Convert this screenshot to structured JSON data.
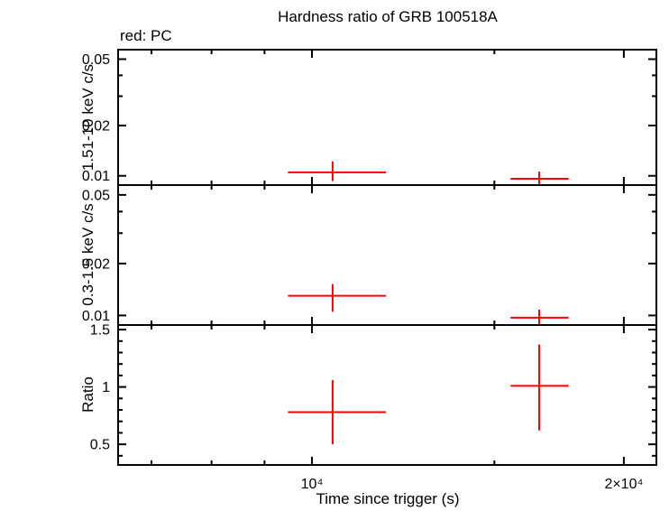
{
  "chart_data": {
    "type": "scatter",
    "title": "Hardness ratio of GRB 100518A",
    "annotation": "red: PC",
    "xlabel": "Time since trigger (s)",
    "series_color": "#ff0000",
    "axis_color": "#000000",
    "legend_position": "top-left",
    "grid": false,
    "xaxis": {
      "scale": "log",
      "lim": [
        6500,
        21500
      ],
      "major_ticks": [
        {
          "value": 10000,
          "label": "10⁴"
        },
        {
          "value": 20000,
          "label": "2×10⁴"
        }
      ],
      "minor_ticks": [
        7000,
        8000,
        9000,
        15000
      ]
    },
    "panels": [
      {
        "name": "hard-band",
        "ylabel": "1.51-10 keV c/s",
        "yscale": "log",
        "ylim": [
          0.0088,
          0.057
        ],
        "major_ticks": [
          {
            "value": 0.05,
            "label": "0.05"
          },
          {
            "value": 0.02,
            "label": "0.02"
          },
          {
            "value": 0.01,
            "label": "0.01"
          }
        ],
        "minor_ticks": [
          0.03,
          0.04
        ],
        "points": [
          {
            "x": 10470,
            "xlo": 9480,
            "xhi": 11790,
            "y": 0.0105,
            "ylo": 0.0093,
            "yhi": 0.0122
          },
          {
            "x": 16570,
            "xlo": 15550,
            "xhi": 17690,
            "y": 0.0096,
            "ylo": 0.0087,
            "yhi": 0.0106
          }
        ]
      },
      {
        "name": "soft-band",
        "ylabel": "0.3-1.5 keV c/s",
        "yscale": "log",
        "ylim": [
          0.0088,
          0.057
        ],
        "major_ticks": [
          {
            "value": 0.05,
            "label": "0.05"
          },
          {
            "value": 0.02,
            "label": "0.02"
          },
          {
            "value": 0.01,
            "label": "0.01"
          }
        ],
        "minor_ticks": [
          0.03,
          0.04
        ],
        "points": [
          {
            "x": 10470,
            "xlo": 9480,
            "xhi": 11790,
            "y": 0.013,
            "ylo": 0.0105,
            "yhi": 0.0152
          },
          {
            "x": 16570,
            "xlo": 15550,
            "xhi": 17690,
            "y": 0.0097,
            "ylo": 0.0085,
            "yhi": 0.0108
          }
        ]
      },
      {
        "name": "ratio",
        "ylabel": "Ratio",
        "yscale": "linear",
        "ylim": [
          0.32,
          1.54
        ],
        "major_ticks": [
          {
            "value": 1.5,
            "label": "1.5"
          },
          {
            "value": 1,
            "label": "1"
          },
          {
            "value": 0.5,
            "label": "0.5"
          }
        ],
        "minor_ticks": [
          0.4,
          0.6,
          0.7,
          0.8,
          0.9,
          1.1,
          1.2,
          1.3,
          1.4
        ],
        "points": [
          {
            "x": 10470,
            "xlo": 9480,
            "xhi": 11790,
            "y": 0.78,
            "ylo": 0.5,
            "yhi": 1.06
          },
          {
            "x": 16570,
            "xlo": 15550,
            "xhi": 17690,
            "y": 1.01,
            "ylo": 0.62,
            "yhi": 1.37
          }
        ]
      }
    ]
  }
}
